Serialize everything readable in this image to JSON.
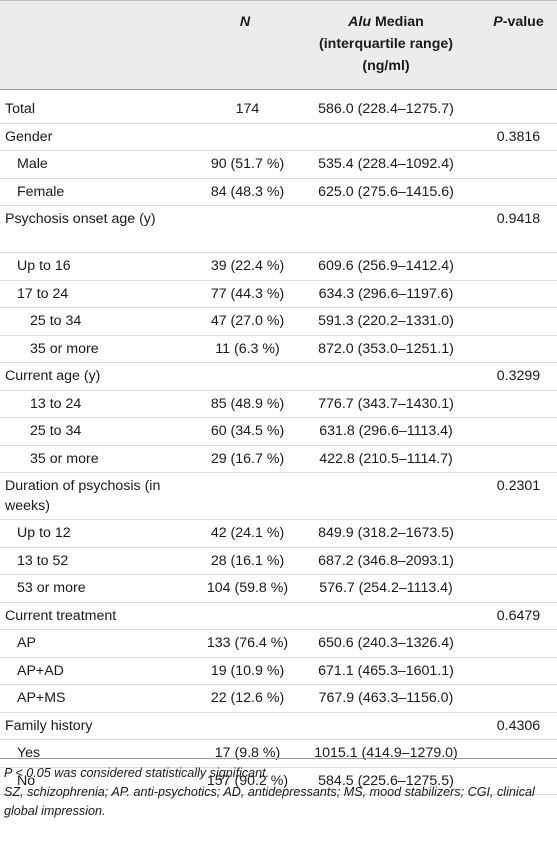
{
  "header": {
    "n": "N",
    "alu_italic": "Alu",
    "alu_rest": " Median",
    "alu_line2": "(interquartile range)",
    "alu_line3": "(ng/ml)",
    "p_italic": "P",
    "p_rest": "-value"
  },
  "rows": [
    {
      "label": "Total",
      "indent": 0,
      "n": "174",
      "alu": "586.0 (228.4–1275.7)",
      "p": ""
    },
    {
      "label": "Gender",
      "indent": 0,
      "n": "",
      "alu": "",
      "p": "0.3816"
    },
    {
      "label": "Male",
      "indent": 1,
      "n": "90 (51.7 %)",
      "alu": "535.4 (228.4–1092.4)",
      "p": ""
    },
    {
      "label": "Female",
      "indent": 1,
      "n": "84 (48.3 %)",
      "alu": "625.0 (275.6–1415.6)",
      "p": ""
    },
    {
      "label": "Psychosis onset age (y)",
      "indent": 0,
      "tall": true,
      "n": "",
      "alu": "",
      "p": "0.9418"
    },
    {
      "label": "Up to 16",
      "indent": 1,
      "n": "39 (22.4 %)",
      "alu": "609.6 (256.9–1412.4)",
      "p": ""
    },
    {
      "label": "17 to 24",
      "indent": 1,
      "n": "77 (44.3 %)",
      "alu": "634.3 (296.6–1197.6)",
      "p": ""
    },
    {
      "label": "25 to 34",
      "indent": 2,
      "n": "47 (27.0 %)",
      "alu": "591.3 (220.2–1331.0)",
      "p": ""
    },
    {
      "label": "35 or more",
      "indent": 2,
      "n": "11 (6.3 %)",
      "alu": "872.0 (353.0–1251.1)",
      "p": ""
    },
    {
      "label": "Current age (y)",
      "indent": 0,
      "n": "",
      "alu": "",
      "p": "0.3299"
    },
    {
      "label": "13 to 24",
      "indent": 2,
      "n": "85 (48.9 %)",
      "alu": "776.7 (343.7–1430.1)",
      "p": ""
    },
    {
      "label": "25 to 34",
      "indent": 2,
      "n": "60 (34.5 %)",
      "alu": "631.8 (296.6–1113.4)",
      "p": ""
    },
    {
      "label": "35 or more",
      "indent": 2,
      "n": "29 (16.7 %)",
      "alu": "422.8 (210.5–1114.7)",
      "p": ""
    },
    {
      "label": "Duration of psychosis (in weeks)",
      "indent": 0,
      "tall": true,
      "n": "",
      "alu": "",
      "p": "0.2301"
    },
    {
      "label": "Up to 12",
      "indent": 1,
      "n": "42 (24.1 %)",
      "alu": "849.9 (318.2–1673.5)",
      "p": ""
    },
    {
      "label": "13 to 52",
      "indent": 1,
      "n": "28 (16.1 %)",
      "alu": "687.2 (346.8–2093.1)",
      "p": ""
    },
    {
      "label": "53 or more",
      "indent": 1,
      "n": "104 (59.8 %)",
      "alu": "576.7 (254.2–1113.4)",
      "p": ""
    },
    {
      "label": "Current treatment",
      "indent": 0,
      "n": "",
      "alu": "",
      "p": "0.6479"
    },
    {
      "label": "AP",
      "indent": 1,
      "n": "133 (76.4 %)",
      "alu": "650.6 (240.3–1326.4)",
      "p": ""
    },
    {
      "label": "AP+AD",
      "indent": 1,
      "n": "19 (10.9 %)",
      "alu": "671.1 (465.3–1601.1)",
      "p": ""
    },
    {
      "label": "AP+MS",
      "indent": 1,
      "n": "22 (12.6 %)",
      "alu": "767.9 (463.3–1156.0)",
      "p": ""
    },
    {
      "label": "Family history",
      "indent": 0,
      "n": "",
      "alu": "",
      "p": "0.4306"
    },
    {
      "label": "Yes",
      "indent": 1,
      "n": "17 (9.8 %)",
      "alu": "1015.1 (414.9–1279.0)",
      "p": ""
    },
    {
      "label": "No",
      "indent": 1,
      "n": "157 (90.2 %)",
      "alu": "584.5 (225.6–1275.5)",
      "p": ""
    }
  ],
  "notes": {
    "line1": "P < 0.05 was considered statistically significant.",
    "line2": "SZ, schizophrenia; AP. anti-psychotics; AD, antidepressants; MS, mood stabilizers; CGI, clinical global impression."
  }
}
